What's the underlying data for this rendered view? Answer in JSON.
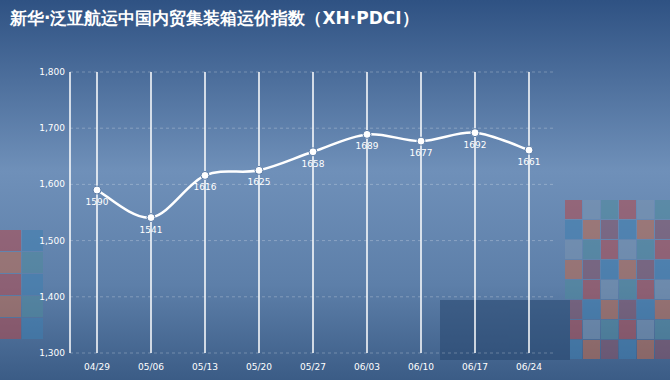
{
  "chart_data": {
    "type": "line",
    "title": "新华·泛亚航运中国内贸集装箱运价指数（XH·PDCI）",
    "categories": [
      "04/29",
      "05/06",
      "05/13",
      "05/20",
      "05/27",
      "06/03",
      "06/10",
      "06/17",
      "06/24"
    ],
    "values": [
      1590,
      1541,
      1616,
      1625,
      1658,
      1689,
      1677,
      1692,
      1661
    ],
    "color": "#ffffff",
    "marker": "circle",
    "line_style": "smooth",
    "data_labels": true,
    "grid": true,
    "ylim": [
      1300,
      1800
    ],
    "yticks": [
      {
        "value": 1300,
        "label": "1,300"
      },
      {
        "value": 1400,
        "label": "1,400"
      },
      {
        "value": 1500,
        "label": "1,500"
      },
      {
        "value": 1600,
        "label": "1,600"
      },
      {
        "value": 1700,
        "label": "1,700"
      },
      {
        "value": 1800,
        "label": "1,800"
      }
    ]
  }
}
